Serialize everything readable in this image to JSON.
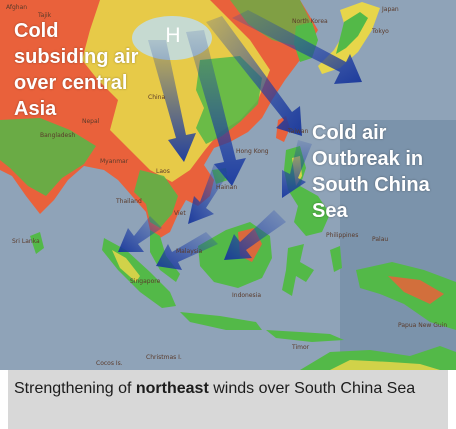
{
  "labels": {
    "cold_subsiding": [
      "Cold",
      "subsiding air",
      "over  central",
      "Asia"
    ],
    "high_pressure": "H",
    "outbreak": [
      "Cold air",
      "Outbreak in",
      "South China",
      "Sea"
    ]
  },
  "place_names": [
    "Afghan",
    "Tajik",
    "North Korea",
    "Japan",
    "Tokyo",
    "Nepal",
    "China",
    "Bangladesh",
    "Taiwan",
    "Myanmar",
    "Laos",
    "Hong Kong",
    "Hainan",
    "Thailand",
    "Viet",
    "Philippines",
    "Sri Lanka",
    "Malaysia",
    "Singapore",
    "Indonesia",
    "Palau",
    "Papua New Guin",
    "Timor",
    "Cocos Is.",
    "Christmas I."
  ],
  "caption": {
    "before": "Strengthening of ",
    "bold": "northeast",
    "after": " winds over South China Sea"
  },
  "colors": {
    "sea": "#8fa3b8",
    "ocean_deep": "#7b93ab",
    "land_low": "#53b948",
    "land_mid": "#e7d64a",
    "land_high": "#e9613b",
    "arrow": "#1e3fa6",
    "caption_bg": "#d8d8d8"
  }
}
